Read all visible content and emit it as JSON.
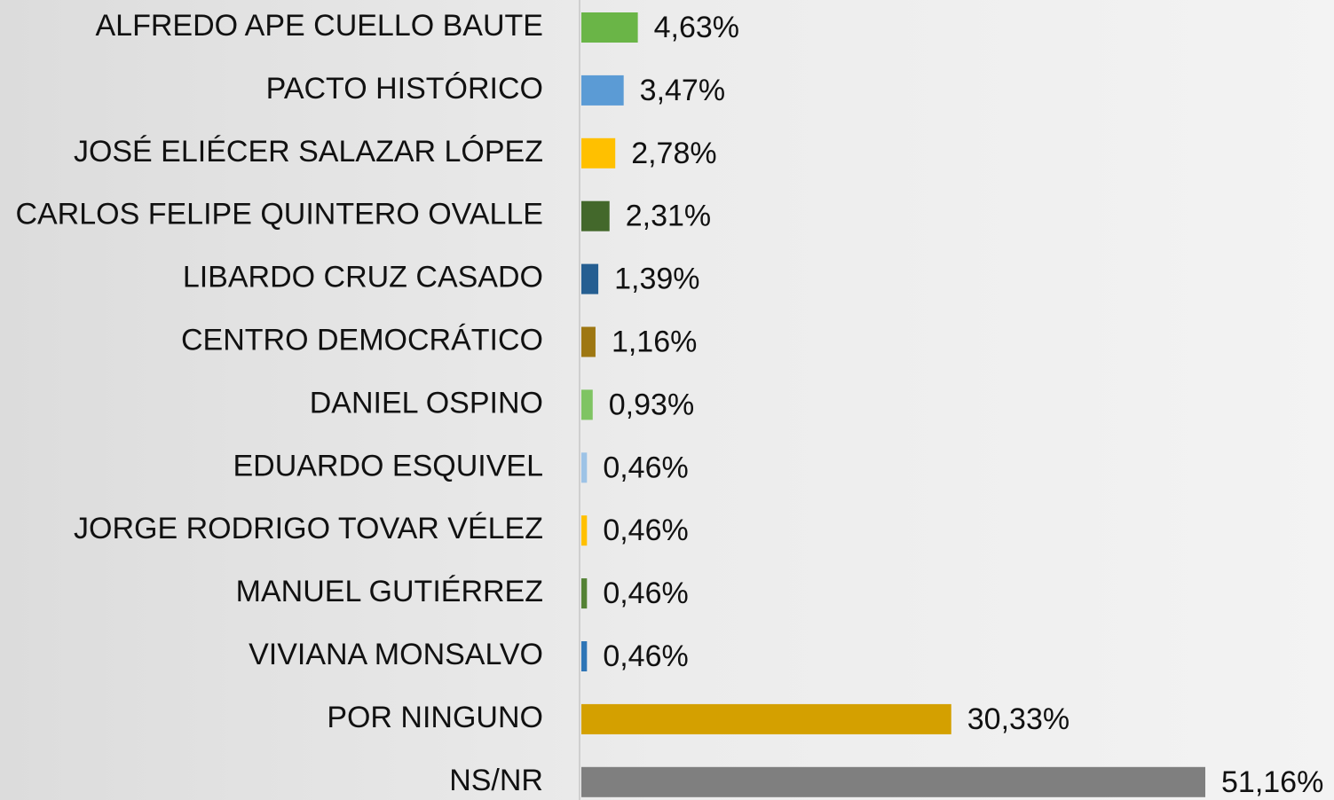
{
  "chart_data": {
    "type": "hbar",
    "categories": [
      "ALFREDO APE CUELLO BAUTE",
      "PACTO HISTÓRICO",
      "JOSÉ ELIÉCER SALAZAR LÓPEZ",
      "CARLOS FELIPE QUINTERO OVALLE",
      "LIBARDO CRUZ CASADO",
      "CENTRO DEMOCRÁTICO",
      "DANIEL OSPINO",
      "EDUARDO ESQUIVEL",
      "JORGE RODRIGO TOVAR VÉLEZ",
      "MANUEL GUTIÉRREZ",
      "VIVIANA MONSALVO",
      "POR NINGUNO",
      "NS/NR"
    ],
    "values": [
      4.63,
      3.47,
      2.78,
      2.31,
      1.39,
      1.16,
      0.93,
      0.46,
      0.46,
      0.46,
      0.46,
      30.33,
      51.16
    ],
    "value_labels": [
      "4,63%",
      "3,47%",
      "2,78%",
      "2,31%",
      "1,39%",
      "1,16%",
      "0,93%",
      "0,46%",
      "0,46%",
      "0,46%",
      "0,46%",
      "30,33%",
      "51,16%"
    ],
    "colors": [
      "#6ab547",
      "#5b9bd5",
      "#ffc000",
      "#43682b",
      "#255e91",
      "#9e7712",
      "#7fc463",
      "#9dc3e6",
      "#ffc000",
      "#548235",
      "#2e75b6",
      "#d4a000",
      "#7f7f7f"
    ]
  }
}
